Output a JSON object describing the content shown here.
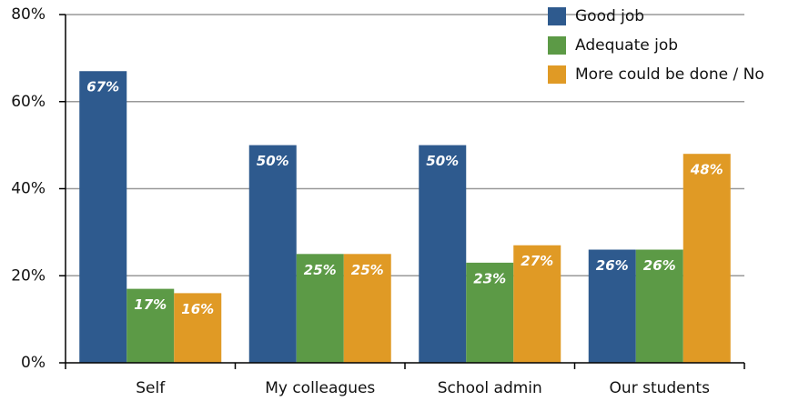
{
  "chart_data": {
    "type": "bar",
    "categories": [
      "Self",
      "My colleagues",
      "School admin",
      "Our students"
    ],
    "series": [
      {
        "name": "Good job",
        "color": "#2e5a8e",
        "values": [
          67,
          50,
          50,
          26
        ],
        "value_labels": [
          "67%",
          "50%",
          "50%",
          "26%"
        ]
      },
      {
        "name": "Adequate job",
        "color": "#5c9a46",
        "values": [
          17,
          25,
          23,
          26
        ],
        "value_labels": [
          "17%",
          "25%",
          "23%",
          "26%"
        ]
      },
      {
        "name": "More could be done / No",
        "color": "#e09a25",
        "values": [
          16,
          25,
          27,
          48
        ],
        "value_labels": [
          "16%",
          "25%",
          "27%",
          "48%"
        ]
      }
    ],
    "ylim": [
      0,
      80
    ],
    "yticks": [
      {
        "value": 0,
        "label": "0%"
      },
      {
        "value": 20,
        "label": "20%"
      },
      {
        "value": 40,
        "label": "40%"
      },
      {
        "value": 60,
        "label": "60%"
      },
      {
        "value": 80,
        "label": "80%"
      }
    ],
    "grid": true,
    "legend": "top-right"
  }
}
